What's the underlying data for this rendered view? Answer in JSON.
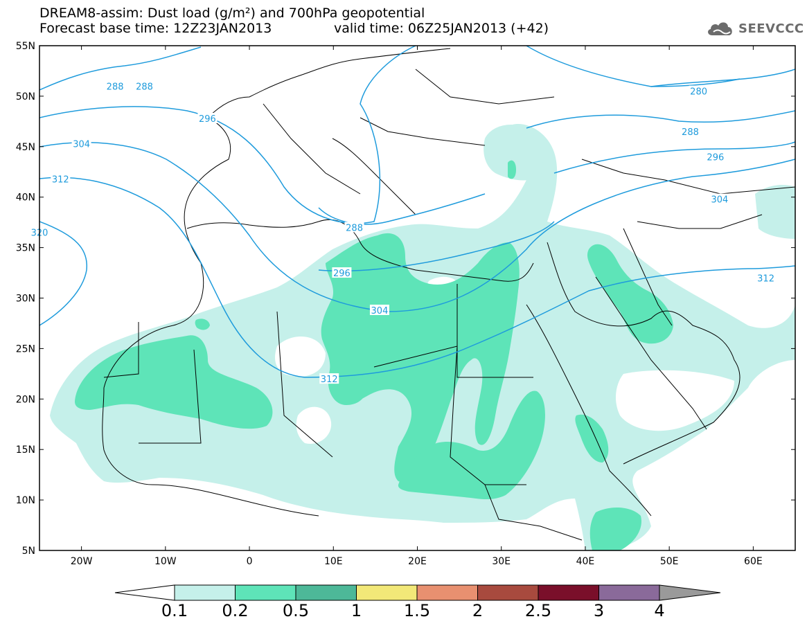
{
  "title": {
    "line1": "DREAM8-assim: Dust load (g/m²) and 700hPa geopotential",
    "base_time": "Forecast base time: 12Z23JAN2013",
    "valid_time": "valid time: 06Z25JAN2013 (+42)"
  },
  "logo": {
    "text": "SEEVCCC",
    "icon": "cloud-icon"
  },
  "axes": {
    "lat_labels": [
      "55N",
      "50N",
      "45N",
      "40N",
      "35N",
      "30N",
      "25N",
      "20N",
      "15N",
      "10N",
      "5N"
    ],
    "lat_values": [
      55,
      50,
      45,
      40,
      35,
      30,
      25,
      20,
      15,
      10,
      5
    ],
    "lon_labels": [
      "20W",
      "10W",
      "0",
      "10E",
      "20E",
      "30E",
      "40E",
      "50E",
      "60E"
    ],
    "lon_values": [
      -20,
      -10,
      0,
      10,
      20,
      30,
      40,
      50,
      60
    ],
    "lon_range": [
      -25,
      65
    ],
    "lat_range": [
      5,
      55
    ]
  },
  "contours": [
    {
      "value": "288",
      "label_lon": -16,
      "label_lat": 51
    },
    {
      "value": "288",
      "label_lon": -12.5,
      "label_lat": 51
    },
    {
      "value": "288",
      "label_lon": 12.5,
      "label_lat": 37
    },
    {
      "value": "288",
      "label_lon": 52.5,
      "label_lat": 46.5
    },
    {
      "value": "280",
      "label_lon": 53.5,
      "label_lat": 50.5
    },
    {
      "value": "296",
      "label_lon": -5,
      "label_lat": 47.8
    },
    {
      "value": "296",
      "label_lon": 11,
      "label_lat": 32.5
    },
    {
      "value": "296",
      "label_lon": 55.5,
      "label_lat": 44
    },
    {
      "value": "304",
      "label_lon": -20,
      "label_lat": 45.3
    },
    {
      "value": "304",
      "label_lon": 15.5,
      "label_lat": 28.8
    },
    {
      "value": "304",
      "label_lon": 56,
      "label_lat": 39.8
    },
    {
      "value": "312",
      "label_lon": -22.5,
      "label_lat": 41.8
    },
    {
      "value": "312",
      "label_lon": 9.5,
      "label_lat": 22
    },
    {
      "value": "312",
      "label_lon": 61.5,
      "label_lat": 32
    },
    {
      "value": "320",
      "label_lon": -25,
      "label_lat": 36.5
    }
  ],
  "legend": {
    "colors": [
      "#c5f0ea",
      "#5ee4b8",
      "#4db898",
      "#f2e878",
      "#e89070",
      "#a84a3e",
      "#7a0f2a",
      "#8a6a9a"
    ],
    "below_color": "#ffffff",
    "above_color": "#9a9a9a",
    "labels": [
      "0.1",
      "0.2",
      "0.5",
      "1",
      "1.5",
      "2",
      "2.5",
      "3",
      "4"
    ]
  }
}
